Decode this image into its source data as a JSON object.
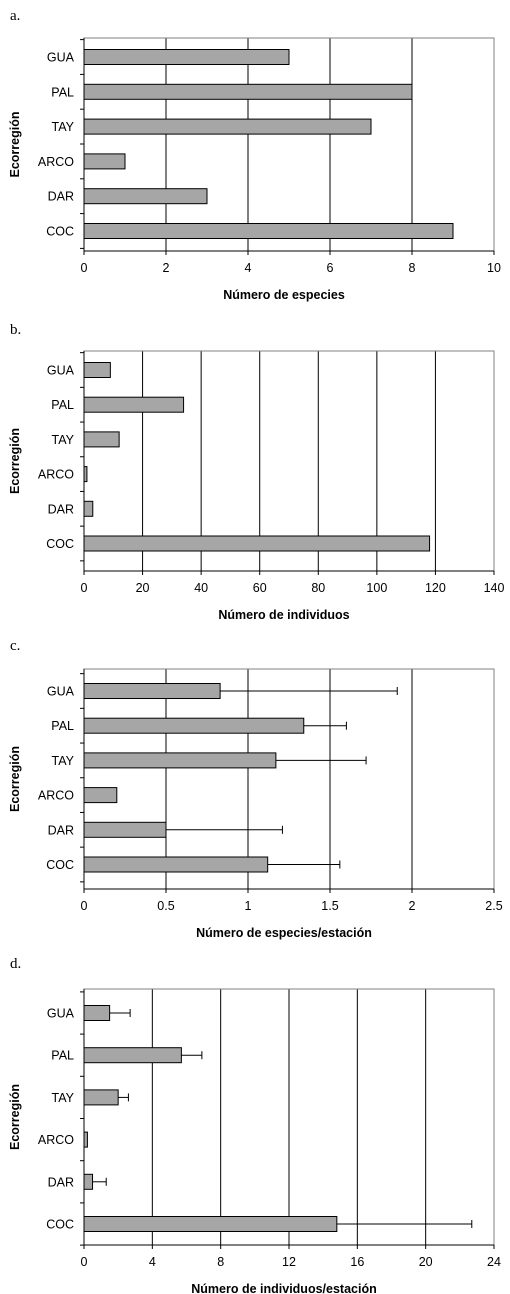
{
  "style": {
    "bar_fill": "#a6a6a6",
    "bar_stroke": "#000000",
    "grid_color": "#000000"
  },
  "chart_data": [
    {
      "panel": "a.",
      "type": "bar",
      "orientation": "horizontal",
      "categories": [
        "GUA",
        "PAL",
        "TAY",
        "ARCO",
        "DAR",
        "COC"
      ],
      "values": [
        5,
        8,
        7,
        1,
        3,
        9
      ],
      "xlabel": "Número de especies",
      "ylabel": "Ecorregión",
      "xlim": [
        0,
        10
      ],
      "xticks": [
        "0",
        "2",
        "4",
        "6",
        "8",
        "10"
      ],
      "grid": "vertical"
    },
    {
      "panel": "b.",
      "type": "bar",
      "orientation": "horizontal",
      "categories": [
        "GUA",
        "PAL",
        "TAY",
        "ARCO",
        "DAR",
        "COC"
      ],
      "values": [
        9,
        34,
        12,
        1,
        3,
        118
      ],
      "xlabel": "Número de individuos",
      "ylabel": "Ecorregión",
      "xlim": [
        0,
        140
      ],
      "xticks": [
        "0",
        "20",
        "40",
        "60",
        "80",
        "100",
        "120",
        "140"
      ],
      "grid": "vertical"
    },
    {
      "panel": "c.",
      "type": "bar",
      "orientation": "horizontal",
      "categories": [
        "GUA",
        "PAL",
        "TAY",
        "ARCO",
        "DAR",
        "COC"
      ],
      "values": [
        0.83,
        1.34,
        1.17,
        0.2,
        0.5,
        1.12
      ],
      "error_bars": [
        1.08,
        0.26,
        0.55,
        0.0,
        0.71,
        0.44
      ],
      "xlabel": "Número de especies/estación",
      "ylabel": "Ecorregión",
      "xlim": [
        0,
        2.5
      ],
      "xticks": [
        "0",
        "0.5",
        "1",
        "1.5",
        "2",
        "2.5"
      ],
      "grid": "vertical"
    },
    {
      "panel": "d.",
      "type": "bar",
      "orientation": "horizontal",
      "categories": [
        "GUA",
        "PAL",
        "TAY",
        "ARCO",
        "DAR",
        "COC"
      ],
      "values": [
        1.5,
        5.7,
        2.0,
        0.2,
        0.5,
        14.8
      ],
      "error_bars": [
        1.2,
        1.2,
        0.6,
        0.0,
        0.8,
        7.9
      ],
      "xlabel": "Número de individuos/estación",
      "ylabel": "Ecorregión",
      "xlim": [
        0,
        24
      ],
      "xticks": [
        "0",
        "4",
        "8",
        "12",
        "16",
        "20",
        "24"
      ],
      "grid": "vertical"
    }
  ]
}
